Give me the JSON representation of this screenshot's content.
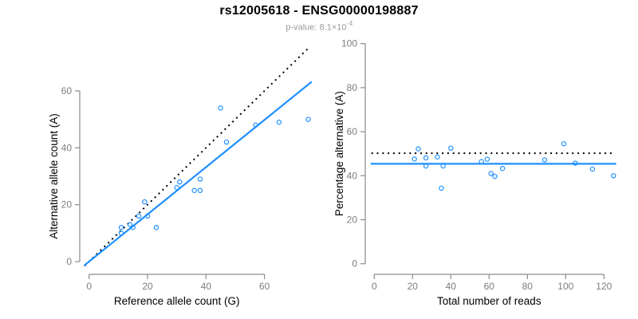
{
  "header": {
    "title": "rs12005618 - ENSG00000198887",
    "subtitle": {
      "prefix": "p-value: ",
      "mantissa": "8.1",
      "times": "×",
      "base": "10",
      "exponent": "-4"
    }
  },
  "colors": {
    "accent_blue": "#1E90FF",
    "dotted_black": "#000000",
    "axis_gray": "#8a8a8a",
    "tick_label_gray": "#7d7d7d",
    "axis_title_black": "#000000",
    "subtitle_gray": "#9a9a9a",
    "background": "#ffffff"
  },
  "chart_data": [
    {
      "type": "scatter",
      "name": "allele-count-panel",
      "xlabel": "Reference allele count (G)",
      "ylabel": "Alternative allele count (A)",
      "xticks": [
        0,
        20,
        40,
        60
      ],
      "yticks": [
        0,
        20,
        40,
        60
      ],
      "xlim": [
        -3,
        79
      ],
      "ylim": [
        -4,
        77
      ],
      "grid": false,
      "legend": null,
      "points": [
        [
          11,
          12
        ],
        [
          11,
          10
        ],
        [
          14,
          13
        ],
        [
          15,
          12
        ],
        [
          17,
          16
        ],
        [
          19,
          21
        ],
        [
          20,
          16
        ],
        [
          23,
          12
        ],
        [
          30,
          26
        ],
        [
          31,
          28
        ],
        [
          36,
          25
        ],
        [
          38,
          25
        ],
        [
          38,
          29
        ],
        [
          45,
          54
        ],
        [
          47,
          42
        ],
        [
          57,
          48
        ],
        [
          65,
          49
        ],
        [
          75,
          50
        ]
      ],
      "lines": [
        {
          "name": "expected-50-50-line",
          "style": "dotted",
          "color": "#000000",
          "slope": 1,
          "intercept": 0,
          "x_range": [
            -1.5,
            75
          ]
        },
        {
          "name": "fitted-proportion-line",
          "style": "solid",
          "color": "#1E90FF",
          "slope": 0.83,
          "intercept": 0,
          "x_range": [
            -1.5,
            76
          ]
        }
      ]
    },
    {
      "type": "scatter",
      "name": "percentage-panel",
      "xlabel": "Total number of reads",
      "ylabel": "Percentage alternative (A)",
      "xticks": [
        0,
        20,
        40,
        60,
        80,
        100,
        120
      ],
      "yticks": [
        0,
        20,
        40,
        60,
        80,
        100
      ],
      "xlim": [
        -5,
        131
      ],
      "ylim": [
        -5,
        105
      ],
      "grid": false,
      "legend": null,
      "points": [
        [
          23,
          52.2
        ],
        [
          21,
          47.6
        ],
        [
          27,
          48.1
        ],
        [
          27,
          44.4
        ],
        [
          33,
          48.5
        ],
        [
          40,
          52.5
        ],
        [
          36,
          44.4
        ],
        [
          35,
          34.3
        ],
        [
          56,
          46.4
        ],
        [
          59,
          47.5
        ],
        [
          61,
          41.0
        ],
        [
          63,
          39.7
        ],
        [
          67,
          43.3
        ],
        [
          89,
          47.2
        ],
        [
          99,
          54.5
        ],
        [
          105,
          45.7
        ],
        [
          114,
          43.0
        ],
        [
          125,
          40.0
        ]
      ],
      "lines": [
        {
          "name": "expected-50-percent-line",
          "style": "dotted",
          "color": "#000000",
          "y": 50.2,
          "x_range": [
            -1.5,
            126
          ]
        },
        {
          "name": "fitted-percent-line",
          "style": "solid",
          "color": "#1E90FF",
          "y": 45.4,
          "x_range": [
            -1.5,
            126
          ]
        }
      ]
    }
  ]
}
